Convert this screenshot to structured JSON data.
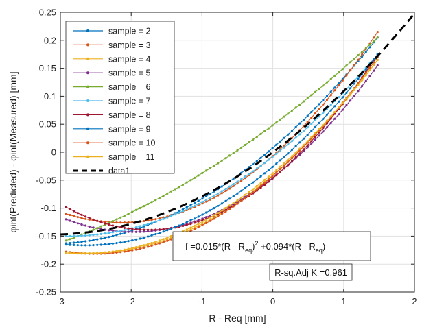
{
  "chart_data": {
    "type": "line",
    "xlabel": "R - Req [mm]",
    "ylabel": "φint(Predicted) - φint(Measured) [mm]",
    "xlim": [
      -3,
      2
    ],
    "ylim": [
      -0.25,
      0.25
    ],
    "xticks": [
      -3,
      -2,
      -1,
      0,
      1,
      2
    ],
    "xtick_labels": [
      "-3",
      "-2",
      "-1",
      "0",
      "1",
      "2"
    ],
    "yticks": [
      -0.25,
      -0.2,
      -0.15,
      -0.1,
      -0.05,
      0,
      0.05,
      0.1,
      0.15,
      0.2,
      0.25
    ],
    "ytick_labels": [
      "-0.25",
      "-0.2",
      "-0.15",
      "-0.1",
      "-0.05",
      "0",
      "0.05",
      "0.1",
      "0.15",
      "0.2",
      "0.25"
    ],
    "grid": true,
    "legend_position": "top-left",
    "series": [
      {
        "name": "sample = 2",
        "color": "#0072BD",
        "x_range": [
          -2.92,
          1.48
        ],
        "y_start": -0.163,
        "y_end": 0.205,
        "curvature": 0.017
      },
      {
        "name": "sample = 3",
        "color": "#D95319",
        "x_range": [
          -2.92,
          1.48
        ],
        "y_start": -0.11,
        "y_end": 0.215,
        "curvature": 0.026
      },
      {
        "name": "sample = 4",
        "color": "#EDB120",
        "x_range": [
          -2.92,
          1.48
        ],
        "y_start": -0.178,
        "y_end": 0.165,
        "curvature": 0.021
      },
      {
        "name": "sample = 5",
        "color": "#7E2F8E",
        "x_range": [
          -2.92,
          1.48
        ],
        "y_start": -0.12,
        "y_end": 0.155,
        "curvature": 0.025
      },
      {
        "name": "sample = 6",
        "color": "#77AC30",
        "x_range": [
          -2.92,
          1.48
        ],
        "y_start": -0.158,
        "y_end": 0.205,
        "curvature": 0.008
      },
      {
        "name": "sample = 7",
        "color": "#4DBEEE",
        "x_range": [
          -2.92,
          1.48
        ],
        "y_start": -0.15,
        "y_end": 0.175,
        "curvature": 0.017
      },
      {
        "name": "sample = 8",
        "color": "#A2142F",
        "x_range": [
          -2.92,
          1.48
        ],
        "y_start": -0.098,
        "y_end": 0.175,
        "curvature": 0.03
      },
      {
        "name": "sample = 9",
        "color": "#0072BD",
        "x_range": [
          -2.92,
          1.48
        ],
        "y_start": -0.165,
        "y_end": 0.175,
        "curvature": 0.02
      },
      {
        "name": "sample = 10",
        "color": "#D95319",
        "x_range": [
          -2.92,
          1.48
        ],
        "y_start": -0.178,
        "y_end": 0.17,
        "curvature": 0.022
      },
      {
        "name": "sample = 11",
        "color": "#EDB120",
        "x_range": [
          -2.92,
          1.48
        ],
        "y_start": -0.18,
        "y_end": 0.165,
        "curvature": 0.02
      }
    ],
    "fit": {
      "name": "data1",
      "color": "#000000",
      "style": "dashed",
      "a": 0.015,
      "b": 0.094,
      "x_range": [
        -3,
        2
      ]
    },
    "annotations": {
      "equation": {
        "prefix": "f =0.015*(R - R",
        "sub1": "eq",
        "pow": "2",
        "middle": " +0.094*(R - R",
        "sub2": "eq",
        "suffix": ")"
      },
      "rsq": "R-sq.Adj K =0.961"
    }
  }
}
